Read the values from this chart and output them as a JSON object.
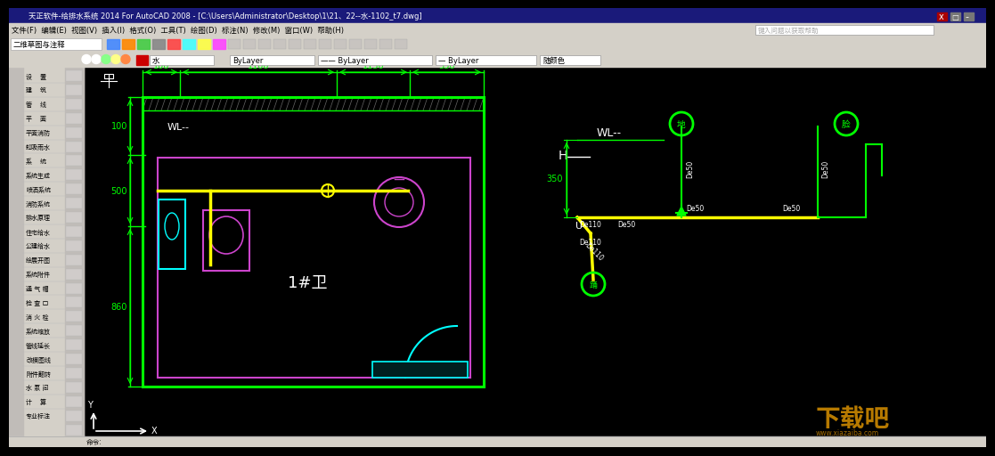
{
  "title_text": "天正软件-给排水系统 2014 For AutoCAD 2008 - [C:\\Users\\Administrator\\Desktop\\1\\21、22--水-1102_t7.dwg]",
  "menu_text": "文件(F)  编辑(E)  视图(V)  插入(I)  格式(O)  工具(T)  绘图(D)  标注(N)  修改(M)  窗口(W)  帮助(H)",
  "toolbar_dropdown": "二维草图与注释",
  "search_hint": "键入问题以获取帮助",
  "layer_label": "水",
  "dropdown1": "ByLayer",
  "dropdown2": "ByLayer",
  "dropdown3": "ByLayer",
  "color_label": "随颜色",
  "left_panel": [
    "设    置",
    "建    筑",
    "管    线",
    "平    面",
    "平面消防",
    "虹吸雨水",
    "系    统",
    "系统生成",
    "喷洒系统",
    "消防系统",
    "排水原理",
    "住宅给水",
    "公建给水",
    "绘展开图",
    "系统附件",
    "通 气 帽",
    "检 查 口",
    "消 火 栓",
    "系统缩放",
    "管线延长",
    "改模图线",
    "附件翻转",
    "水 泵 间",
    "计    算",
    "专业标注"
  ],
  "green": "#00ff00",
  "yellow": "#ffff00",
  "cyan": "#00ffff",
  "magenta": "#cc44cc",
  "white": "#ffffff",
  "gray": "#888888",
  "dark_gray": "#555555",
  "title_bg": "#1a1a7a",
  "menu_bg": "#d4d0c8",
  "drawing_bg": "#000000",
  "sidebar_bg": "#d4d0c8",
  "watermark_color": "#cc8800",
  "watermark": "下载吧",
  "watermark_url": "www.xiazaiba.com",
  "status_text": "命令:",
  "dim_100a": "100",
  "dim_1100": "1100",
  "dim_1150": "1150",
  "dim_530": "530",
  "dim_100b": "100",
  "dim_500": "500",
  "dim_860": "860",
  "wl_label": "WL--",
  "room_label": "1#卫",
  "h_label": "H",
  "wl_right": "WL--",
  "dim_350": "350",
  "u_label": "U",
  "ground_label": "地",
  "face_label": "脸",
  "foot_label": "踊"
}
